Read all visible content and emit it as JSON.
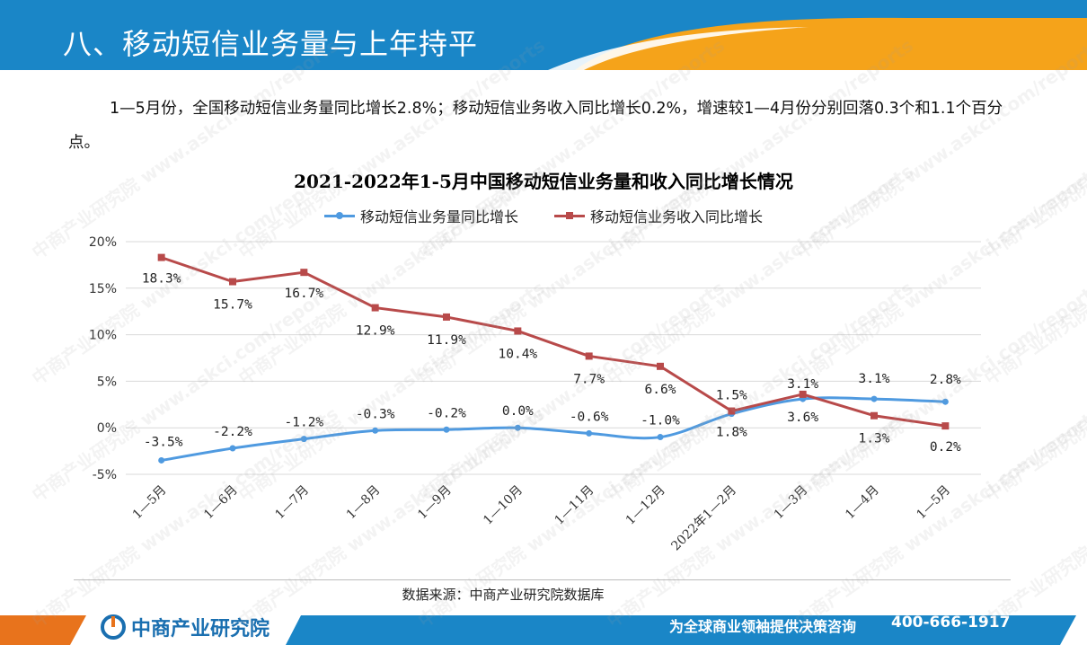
{
  "header": {
    "title": "八、移动短信业务量与上年持平",
    "colors": {
      "blue": "#1a86c7",
      "orange": "#f5a31a"
    }
  },
  "paragraph": "1—5月份，全国移动短信业务量同比增长2.8%；移动短信业务收入同比增长0.2%，增速较1—4月份分别回落0.3个和1.1个百分点。",
  "chart_data": {
    "type": "line",
    "title": "2021-2022年1-5月中国移动短信业务量和收入同比增长情况",
    "categories": [
      "1—5月",
      "1—6月",
      "1—7月",
      "1—8月",
      "1—9月",
      "1—10月",
      "1—11月",
      "1—12月",
      "2022年1—2月",
      "1—3月",
      "1—4月",
      "1—5月"
    ],
    "series": [
      {
        "name": "移动短信业务量同比增长",
        "values": [
          -3.5,
          -2.2,
          -1.2,
          -0.3,
          -0.2,
          0.0,
          -0.6,
          -1.0,
          1.5,
          3.1,
          3.1,
          2.8
        ],
        "labels": [
          "-3.5%",
          "-2.2%",
          "-1.2%",
          "-0.3%",
          "-0.2%",
          "0.0%",
          "-0.6%",
          "-1.0%",
          "1.5%",
          "3.1%",
          "3.1%",
          "2.8%"
        ],
        "color": "#4f9ae0",
        "marker": "circle"
      },
      {
        "name": "移动短信业务收入同比增长",
        "values": [
          18.3,
          15.7,
          16.7,
          12.9,
          11.9,
          10.4,
          7.7,
          6.6,
          1.8,
          3.6,
          1.3,
          0.2
        ],
        "labels": [
          "18.3%",
          "15.7%",
          "16.7%",
          "12.9%",
          "11.9%",
          "10.4%",
          "7.7%",
          "6.6%",
          "1.8%",
          "3.6%",
          "1.3%",
          "0.2%"
        ],
        "color": "#b84a4a",
        "marker": "square"
      }
    ],
    "ylim": [
      -5,
      20
    ],
    "yticks": [
      -5,
      0,
      5,
      10,
      15,
      20
    ],
    "ytick_labels": [
      "-5%",
      "0%",
      "5%",
      "10%",
      "15%",
      "20%"
    ],
    "grid": true,
    "legend_position": "top"
  },
  "source": "数据来源：中商产业研究院数据库",
  "footer": {
    "brand": "中商产业研究院",
    "slogan": "为全球商业领袖提供决策咨询",
    "phone": "400-666-1917"
  },
  "watermark": "中商产业研究院 www.askci.com/reports"
}
